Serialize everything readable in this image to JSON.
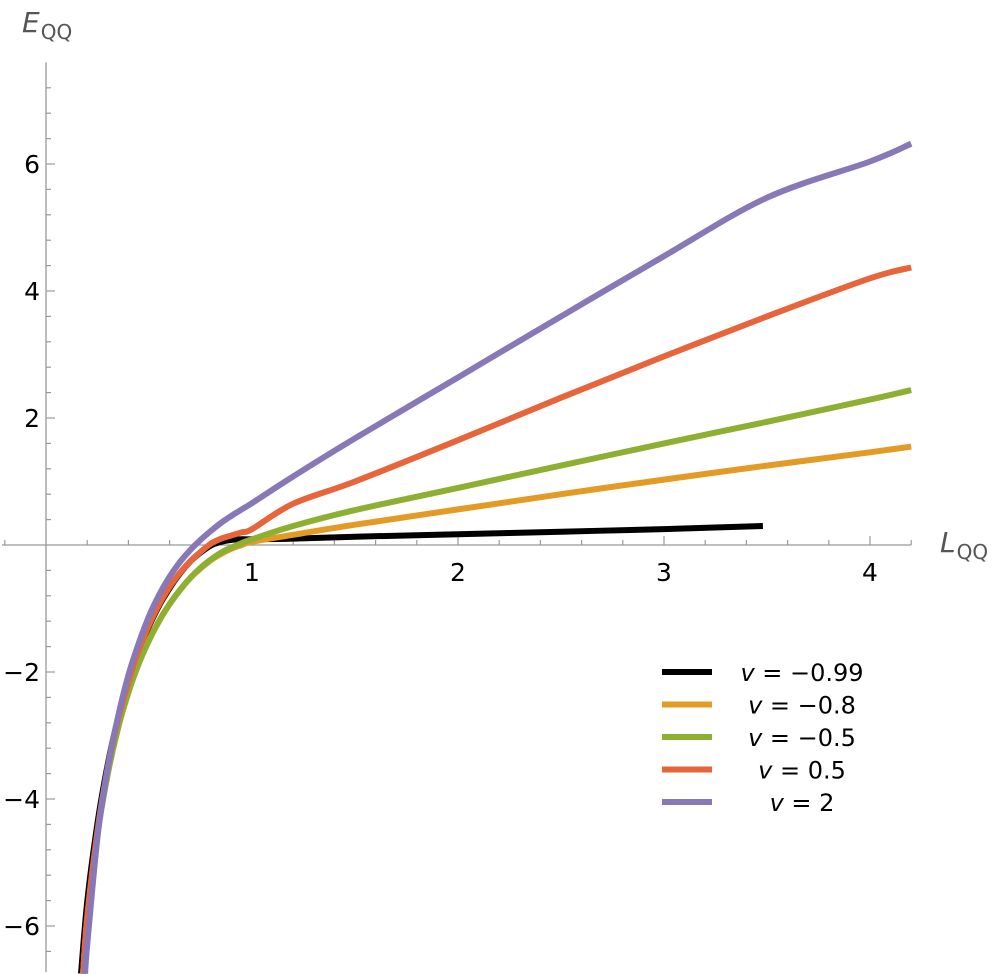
{
  "chart_data": {
    "type": "line",
    "title": "",
    "xlabel": {
      "main": "L",
      "sub": "QQ"
    },
    "ylabel": {
      "main": "E",
      "sub": "QQ"
    },
    "xlim": [
      -0.22,
      4.2
    ],
    "ylim": [
      -6.75,
      7.6
    ],
    "x_ticks": [
      1,
      2,
      3,
      4
    ],
    "x_tick_labels": [
      "1",
      "2",
      "3",
      "4"
    ],
    "y_ticks": [
      -6,
      -4,
      -2,
      2,
      4,
      6
    ],
    "y_tick_labels": [
      "−6",
      "−4",
      "−2",
      "2",
      "4",
      "6"
    ],
    "grid": false,
    "legend_position": "bottom-right",
    "series": [
      {
        "name": "v = −0.99",
        "legend_prefix": "v",
        "legend_value": " = −0.99",
        "color": "#000000",
        "x": [
          0.17,
          0.2,
          0.25,
          0.3,
          0.35,
          0.4,
          0.45,
          0.5,
          0.55,
          0.6,
          0.65,
          0.7,
          0.75,
          0.8,
          0.85,
          0.9,
          0.95,
          1.0,
          1.2,
          1.5,
          2.0,
          2.5,
          3.0,
          3.48
        ],
        "y": [
          -6.75,
          -5.62,
          -4.38,
          -3.45,
          -2.73,
          -2.16,
          -1.68,
          -1.28,
          -0.95,
          -0.68,
          -0.45,
          -0.26,
          -0.12,
          -0.01,
          0.05,
          0.08,
          0.09,
          0.09,
          0.1,
          0.13,
          0.17,
          0.21,
          0.25,
          0.3
        ]
      },
      {
        "name": "v = −0.8",
        "legend_prefix": "v",
        "legend_value": " = −0.8",
        "color": "#E39B25",
        "x": [
          0.18,
          0.2,
          0.25,
          0.3,
          0.35,
          0.4,
          0.45,
          0.5,
          0.55,
          0.6,
          0.65,
          0.7,
          0.75,
          0.8,
          0.85,
          0.9,
          0.95,
          1.0,
          1.2,
          1.5,
          2.0,
          2.5,
          3.0,
          3.5,
          4.0,
          4.2
        ],
        "y": [
          -6.75,
          -5.9,
          -4.55,
          -3.6,
          -2.88,
          -2.32,
          -1.87,
          -1.5,
          -1.19,
          -0.93,
          -0.71,
          -0.52,
          -0.37,
          -0.24,
          -0.14,
          -0.06,
          0.0,
          0.05,
          0.16,
          0.32,
          0.56,
          0.8,
          1.03,
          1.25,
          1.46,
          1.55
        ]
      },
      {
        "name": "v = −0.5",
        "legend_prefix": "v",
        "legend_value": " = −0.5",
        "color": "#8DB032",
        "x": [
          0.18,
          0.2,
          0.25,
          0.3,
          0.35,
          0.4,
          0.45,
          0.5,
          0.55,
          0.6,
          0.65,
          0.7,
          0.75,
          0.8,
          0.85,
          0.9,
          0.95,
          1.0,
          1.2,
          1.5,
          2.0,
          2.5,
          3.0,
          3.5,
          4.0,
          4.2
        ],
        "y": [
          -6.75,
          -5.9,
          -4.55,
          -3.6,
          -2.88,
          -2.32,
          -1.87,
          -1.5,
          -1.19,
          -0.93,
          -0.71,
          -0.52,
          -0.36,
          -0.23,
          -0.12,
          -0.04,
          0.03,
          0.09,
          0.3,
          0.55,
          0.9,
          1.25,
          1.6,
          1.94,
          2.29,
          2.44
        ]
      },
      {
        "name": "v = 0.5",
        "legend_prefix": "v",
        "legend_value": " = 0.5",
        "color": "#E8643A",
        "x": [
          0.18,
          0.2,
          0.25,
          0.3,
          0.35,
          0.4,
          0.45,
          0.5,
          0.55,
          0.6,
          0.65,
          0.7,
          0.75,
          0.8,
          0.85,
          0.9,
          0.95,
          1.0,
          1.2,
          1.5,
          2.0,
          2.5,
          3.0,
          3.5,
          4.0,
          4.2
        ],
        "y": [
          -6.75,
          -5.85,
          -4.5,
          -3.5,
          -2.75,
          -2.15,
          -1.66,
          -1.26,
          -0.93,
          -0.66,
          -0.44,
          -0.26,
          -0.11,
          0.02,
          0.1,
          0.15,
          0.2,
          0.25,
          0.65,
          1.0,
          1.65,
          2.32,
          2.97,
          3.6,
          4.2,
          4.37
        ]
      },
      {
        "name": "v = 2",
        "legend_prefix": "v",
        "legend_value": " = 2",
        "color": "#8878B8",
        "x": [
          0.19,
          0.2,
          0.25,
          0.3,
          0.35,
          0.4,
          0.45,
          0.5,
          0.55,
          0.6,
          0.65,
          0.7,
          0.75,
          0.8,
          0.85,
          0.9,
          0.95,
          1.0,
          1.2,
          1.5,
          2.0,
          2.5,
          3.0,
          3.5,
          4.0,
          4.2
        ],
        "y": [
          -6.75,
          -6.3,
          -4.6,
          -3.5,
          -2.7,
          -2.05,
          -1.55,
          -1.12,
          -0.78,
          -0.5,
          -0.27,
          -0.08,
          0.08,
          0.22,
          0.35,
          0.46,
          0.56,
          0.66,
          1.08,
          1.68,
          2.64,
          3.6,
          4.55,
          5.47,
          6.04,
          6.32
        ]
      }
    ]
  }
}
